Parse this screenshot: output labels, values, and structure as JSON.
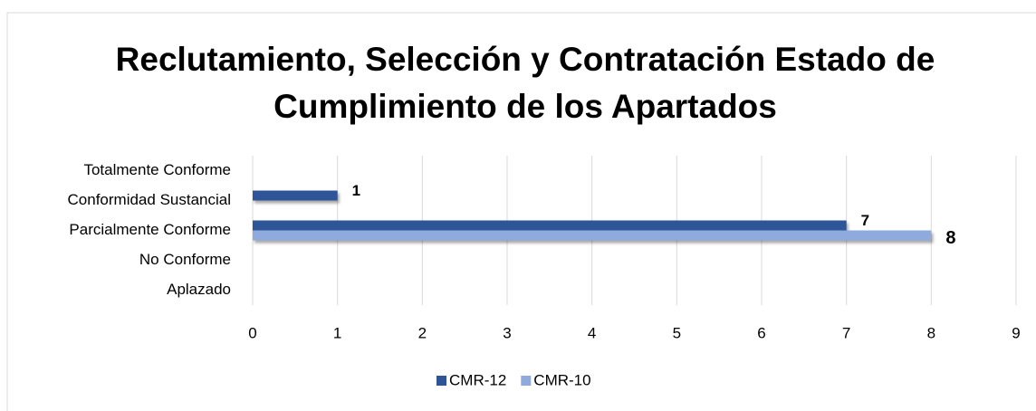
{
  "chart_data": {
    "type": "hbar",
    "title": "Reclutamiento, Selección y Contratación Estado de Cumplimiento de los Apartados",
    "categories": [
      "Totalmente Conforme",
      "Conformidad Sustancial",
      "Parcialmente Conforme",
      "No Conforme",
      "Aplazado"
    ],
    "series": [
      {
        "name": "CMR-12",
        "color": "#2f5597",
        "values": [
          null,
          1,
          7,
          null,
          null
        ]
      },
      {
        "name": "CMR-10",
        "color": "#8faadc",
        "values": [
          null,
          null,
          8,
          null,
          null
        ]
      }
    ],
    "xlim": [
      0,
      9
    ],
    "xticks": [
      0,
      1,
      2,
      3,
      4,
      5,
      6,
      7,
      8,
      9
    ],
    "grid": true,
    "legend": "bottom"
  }
}
